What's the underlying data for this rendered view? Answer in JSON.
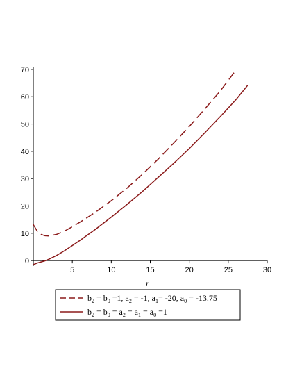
{
  "chart_data": {
    "type": "line",
    "xlabel": "r",
    "ylabel": "",
    "xlim": [
      0,
      30
    ],
    "ylim": [
      -2,
      71
    ],
    "x_ticks": [
      5,
      10,
      15,
      20,
      25,
      30
    ],
    "y_ticks": [
      0,
      10,
      20,
      30,
      40,
      50,
      60,
      70
    ],
    "grid": false,
    "legend_position": "bottom",
    "colors": {
      "series": "#8b1a1a"
    },
    "series": [
      {
        "name": "b2 = b0 =1, a2 = -1, a1= -20, a0 = -13.75",
        "legend_parts": [
          {
            "t": "b",
            "s": ""
          },
          {
            "t": "2",
            "s": "sub"
          },
          {
            "t": " = b",
            "s": ""
          },
          {
            "t": "0",
            "s": "sub"
          },
          {
            "t": " =1, a",
            "s": ""
          },
          {
            "t": "2",
            "s": "sub"
          },
          {
            "t": " = -1, a",
            "s": ""
          },
          {
            "t": "1",
            "s": "sub"
          },
          {
            "t": "= -20, a",
            "s": ""
          },
          {
            "t": "0",
            "s": "sub"
          },
          {
            "t": " = -13.75",
            "s": ""
          }
        ],
        "style": "dashed",
        "x": [
          0,
          0.5,
          1,
          1.5,
          2,
          3,
          4,
          5,
          6,
          7,
          8,
          10,
          12,
          14,
          16,
          18,
          20,
          22,
          24,
          26
        ],
        "y": [
          13.2,
          10.8,
          9.6,
          9.1,
          9.0,
          9.6,
          10.8,
          12.4,
          14.1,
          15.9,
          17.8,
          21.9,
          26.5,
          31.6,
          37.1,
          43.0,
          49.1,
          55.5,
          62.2,
          69.8
        ]
      },
      {
        "name": "b2 = b0 = a2 = a1 = a0 =1",
        "legend_parts": [
          {
            "t": "b",
            "s": ""
          },
          {
            "t": "2",
            "s": "sub"
          },
          {
            "t": " = b",
            "s": ""
          },
          {
            "t": "0",
            "s": "sub"
          },
          {
            "t": " = a",
            "s": ""
          },
          {
            "t": "2",
            "s": "sub"
          },
          {
            "t": " = a",
            "s": ""
          },
          {
            "t": "1",
            "s": "sub"
          },
          {
            "t": " = a",
            "s": ""
          },
          {
            "t": "0",
            "s": "sub"
          },
          {
            "t": " =1",
            "s": ""
          }
        ],
        "style": "solid",
        "x": [
          0,
          0.5,
          1,
          1.5,
          2,
          3,
          4,
          5,
          6,
          8,
          10,
          12,
          14,
          16,
          18,
          20,
          22,
          24,
          26,
          27.5
        ],
        "y": [
          -1.5,
          -0.9,
          -0.5,
          -0.1,
          0.5,
          1.9,
          3.6,
          5.5,
          7.4,
          11.5,
          15.9,
          20.5,
          25.3,
          30.4,
          35.6,
          41.0,
          46.8,
          52.8,
          59.0,
          64.2
        ]
      }
    ]
  }
}
